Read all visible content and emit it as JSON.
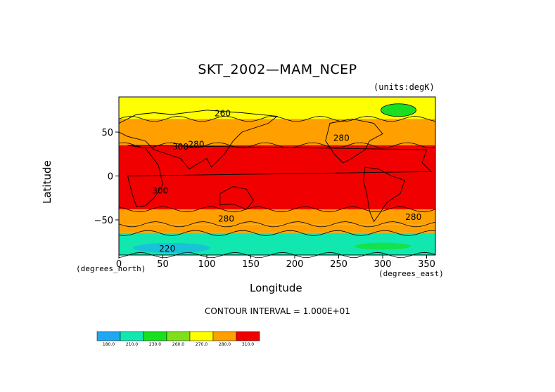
{
  "chart_data": {
    "type": "heatmap",
    "title": "SKT_2002—MAM_NCEP",
    "units_note": "(units:degK)",
    "xlabel": "Longitude",
    "ylabel": "Latitude",
    "x_note": "(degrees_north)",
    "y_note": "(degrees_east)",
    "xlim": [
      0,
      360
    ],
    "ylim": [
      -90,
      90
    ],
    "x_ticks": [
      0,
      50,
      100,
      150,
      200,
      250,
      300,
      350
    ],
    "y_ticks": [
      50,
      0,
      -50
    ],
    "contour_interval": "CONTOUR INTERVAL = 1.000E+01",
    "zonal_bands": [
      {
        "lat_from": 65,
        "lat_to": 90,
        "level": 260
      },
      {
        "lat_from": 35,
        "lat_to": 65,
        "level": 280
      },
      {
        "lat_from": -38,
        "lat_to": 35,
        "level": 300
      },
      {
        "lat_from": -55,
        "lat_to": -38,
        "level": 280
      },
      {
        "lat_from": -65,
        "lat_to": -55,
        "level": 270
      },
      {
        "lat_from": -90,
        "lat_to": -65,
        "level": 230
      }
    ],
    "contour_labels": [
      {
        "text": "260",
        "lon": 118,
        "lat": 68
      },
      {
        "text": "280",
        "lon": 253,
        "lat": 40
      },
      {
        "text": "300",
        "lon": 70,
        "lat": 30
      },
      {
        "text": "280",
        "lon": 88,
        "lat": 33
      },
      {
        "text": "300",
        "lon": 47,
        "lat": -20
      },
      {
        "text": "280",
        "lon": 122,
        "lat": -52
      },
      {
        "text": "280",
        "lon": 335,
        "lat": -50
      },
      {
        "text": "220",
        "lon": 55,
        "lat": -86
      }
    ],
    "legend": {
      "levels": [
        "180.0",
        "210.0",
        "230.0",
        "260.0",
        "270.0",
        "280.0",
        "310.0"
      ],
      "colors": [
        "#1ea8f2",
        "#10e8b0",
        "#18e020",
        "#7ee01a",
        "#ffff00",
        "#ffa000",
        "#f00000"
      ]
    },
    "colors": {
      "260": "#ffff00",
      "270": "#ffa000",
      "280": "#ffa000",
      "300": "#f00000",
      "230": "#10e8b0",
      "greenland": "#18e020"
    }
  }
}
